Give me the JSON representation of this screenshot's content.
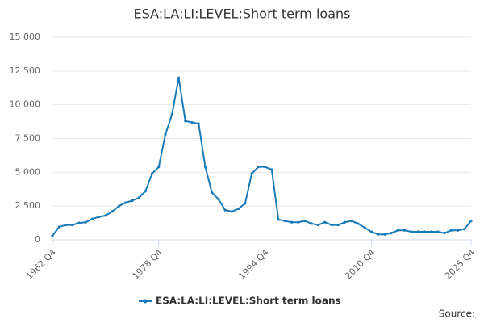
{
  "chart_data": {
    "type": "line",
    "title": "ESA:LA:LI:LEVEL:Short term loans",
    "categories": [
      "1962 Q4",
      null,
      null,
      null,
      null,
      null,
      null,
      null,
      null,
      null,
      null,
      null,
      null,
      null,
      null,
      null,
      "1978 Q4",
      null,
      null,
      null,
      null,
      null,
      null,
      null,
      null,
      null,
      null,
      null,
      null,
      null,
      null,
      null,
      "1994 Q4",
      null,
      null,
      null,
      null,
      null,
      null,
      null,
      null,
      null,
      null,
      null,
      null,
      null,
      null,
      null,
      "2010 Q4",
      null,
      null,
      null,
      null,
      null,
      null,
      null,
      null,
      null,
      null,
      null,
      null,
      null,
      null,
      "2025 Q4"
    ],
    "series": [
      {
        "name": "ESA:LA:LI:LEVEL:Short term loans",
        "color": "#1a7ab8",
        "values": [
          300,
          950,
          1100,
          1100,
          1250,
          1300,
          1550,
          1700,
          1800,
          2100,
          2500,
          2750,
          2900,
          3100,
          3600,
          4900,
          5400,
          7800,
          9300,
          12000,
          8800,
          8700,
          8600,
          5400,
          3500,
          3000,
          2200,
          2100,
          2300,
          2700,
          4900,
          5400,
          5400,
          5200,
          1500,
          1400,
          1300,
          1300,
          1400,
          1200,
          1100,
          1300,
          1100,
          1100,
          1300,
          1400,
          1200,
          900,
          600,
          400,
          400,
          500,
          700,
          700,
          600,
          600,
          600,
          600,
          600,
          500,
          700,
          700,
          800,
          1400
        ]
      }
    ],
    "ylim": [
      0,
      15000
    ],
    "yticks": [
      0,
      {
        "value": 2500,
        "label": "2 500"
      },
      {
        "value": 5000,
        "label": "5 000"
      },
      {
        "value": 7500,
        "label": "7 500"
      },
      {
        "value": 10000,
        "label": "10 000"
      },
      {
        "value": 12500,
        "label": "12 500"
      },
      {
        "value": 15000,
        "label": "15 000"
      }
    ],
    "grid": true,
    "legend": "bottom",
    "source": "Source:"
  }
}
